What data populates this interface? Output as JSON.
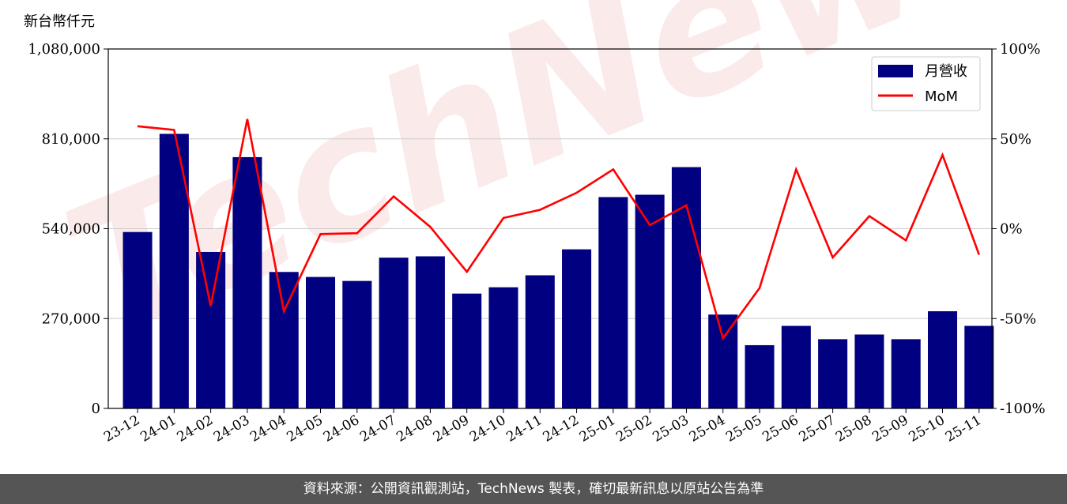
{
  "unit_label": "新台幣仟元",
  "watermark": "TechNews",
  "footer": "資料來源：公開資訊觀測站，TechNews 製表，確切最新訊息以原站公告為準",
  "colors": {
    "bar": "#000080",
    "line": "#ff0000",
    "grid": "#cccccc",
    "footer_bg": "#555555"
  },
  "chart_data": {
    "type": "bar",
    "categories": [
      "23-12",
      "24-01",
      "24-02",
      "24-03",
      "24-04",
      "24-05",
      "24-06",
      "24-07",
      "24-08",
      "24-09",
      "24-10",
      "24-11",
      "24-12",
      "25-01",
      "25-02",
      "25-03",
      "25-04",
      "25-05",
      "25-06",
      "25-07",
      "25-08",
      "25-09",
      "25-10",
      "25-11"
    ],
    "series": [
      {
        "name": "月營收",
        "type": "bar",
        "axis": "left",
        "values": [
          530000,
          825000,
          470000,
          755000,
          410000,
          395000,
          383000,
          453000,
          457000,
          345000,
          364000,
          400000,
          478000,
          635000,
          642000,
          725000,
          282000,
          190000,
          248000,
          208000,
          222000,
          208000,
          292000,
          248000
        ]
      },
      {
        "name": "MoM",
        "type": "line",
        "axis": "right",
        "values": [
          57,
          55,
          -43,
          61,
          -46,
          -3,
          -2.5,
          18,
          1,
          -24,
          6,
          10.5,
          20,
          33,
          2,
          13,
          -61,
          -33,
          33,
          -16,
          7,
          -6.5,
          41,
          -14.5
        ]
      }
    ],
    "y_left": {
      "ticks": [
        0,
        270000,
        540000,
        810000,
        1080000
      ],
      "tick_labels": [
        "0",
        "270,000",
        "540,000",
        "810,000",
        "1,080,000"
      ],
      "ylim": [
        0,
        1080000
      ]
    },
    "y_right": {
      "ticks": [
        -100,
        -50,
        0,
        50,
        100
      ],
      "tick_labels": [
        "-100%",
        "-50%",
        "0%",
        "50%",
        "100%"
      ],
      "ylim": [
        -100,
        100
      ]
    },
    "grid": true,
    "legend": "top-right"
  }
}
